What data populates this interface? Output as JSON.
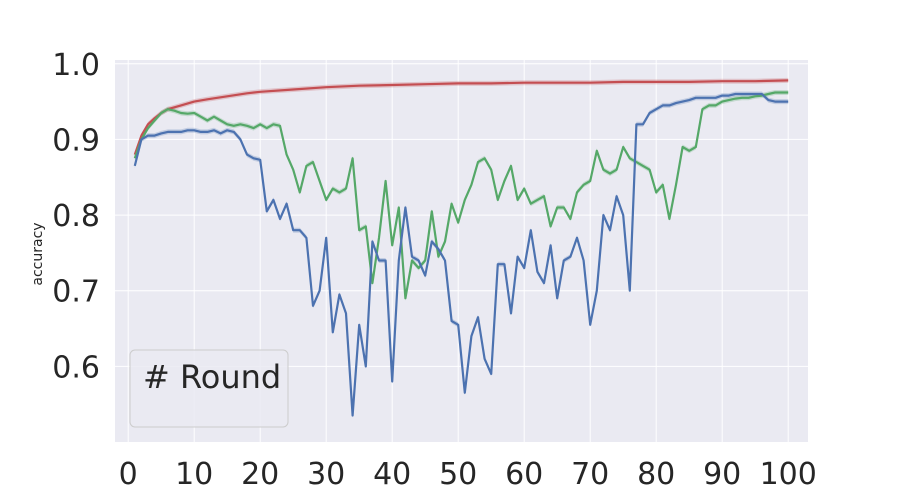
{
  "chart_data": {
    "type": "line",
    "title": "",
    "xlabel": "",
    "ylabel": "accuracy",
    "xlim": [
      -2,
      103
    ],
    "ylim": [
      0.5,
      1.005
    ],
    "xticks": [
      0,
      10,
      20,
      30,
      40,
      50,
      60,
      70,
      80,
      90,
      100
    ],
    "yticks": [
      0.6,
      0.7,
      0.8,
      0.9,
      1.0
    ],
    "ytick_labels": [
      "0.6",
      "0.7",
      "0.8",
      "0.9",
      "1.0"
    ],
    "grid": true,
    "legend": {
      "placement": "lower-left",
      "title": "# Round",
      "entries": []
    },
    "colors": {
      "background": "#eaeaf2",
      "grid": "#ffffff",
      "blue": "#4c72b0",
      "green": "#55a868",
      "red": "#c44e52"
    },
    "series": [
      {
        "color": "#c44e52",
        "x": [
          1,
          2,
          3,
          4,
          5,
          6,
          8,
          10,
          12,
          15,
          18,
          20,
          25,
          30,
          35,
          40,
          45,
          50,
          55,
          60,
          65,
          70,
          75,
          80,
          85,
          90,
          95,
          100
        ],
        "y": [
          0.88,
          0.905,
          0.92,
          0.928,
          0.935,
          0.94,
          0.945,
          0.95,
          0.953,
          0.957,
          0.961,
          0.963,
          0.966,
          0.969,
          0.971,
          0.972,
          0.973,
          0.974,
          0.974,
          0.975,
          0.975,
          0.975,
          0.976,
          0.976,
          0.976,
          0.977,
          0.977,
          0.978
        ]
      },
      {
        "color": "#55a868",
        "x": [
          1,
          2,
          3,
          4,
          5,
          6,
          7,
          8,
          9,
          10,
          11,
          12,
          13,
          14,
          15,
          16,
          17,
          18,
          19,
          20,
          21,
          22,
          23,
          24,
          25,
          26,
          27,
          28,
          29,
          30,
          31,
          32,
          33,
          34,
          35,
          36,
          37,
          38,
          39,
          40,
          41,
          42,
          43,
          44,
          45,
          46,
          47,
          48,
          49,
          50,
          51,
          52,
          53,
          54,
          55,
          56,
          57,
          58,
          59,
          60,
          61,
          62,
          63,
          64,
          65,
          66,
          67,
          68,
          69,
          70,
          71,
          72,
          73,
          74,
          75,
          76,
          77,
          78,
          79,
          80,
          81,
          82,
          83,
          84,
          85,
          86,
          87,
          88,
          89,
          90,
          91,
          92,
          93,
          94,
          95,
          96,
          97,
          98,
          99,
          100
        ],
        "y": [
          0.875,
          0.9,
          0.915,
          0.925,
          0.935,
          0.94,
          0.938,
          0.935,
          0.934,
          0.935,
          0.93,
          0.925,
          0.93,
          0.925,
          0.92,
          0.918,
          0.92,
          0.918,
          0.915,
          0.92,
          0.915,
          0.92,
          0.918,
          0.88,
          0.86,
          0.83,
          0.865,
          0.87,
          0.845,
          0.82,
          0.835,
          0.83,
          0.835,
          0.875,
          0.78,
          0.785,
          0.71,
          0.77,
          0.845,
          0.76,
          0.81,
          0.69,
          0.74,
          0.73,
          0.74,
          0.805,
          0.745,
          0.765,
          0.815,
          0.79,
          0.82,
          0.84,
          0.87,
          0.875,
          0.86,
          0.82,
          0.845,
          0.865,
          0.82,
          0.835,
          0.815,
          0.82,
          0.825,
          0.785,
          0.81,
          0.81,
          0.795,
          0.83,
          0.84,
          0.845,
          0.885,
          0.86,
          0.855,
          0.86,
          0.89,
          0.875,
          0.87,
          0.865,
          0.86,
          0.83,
          0.84,
          0.795,
          0.84,
          0.89,
          0.885,
          0.89,
          0.94,
          0.945,
          0.945,
          0.95,
          0.952,
          0.954,
          0.955,
          0.955,
          0.957,
          0.958,
          0.96,
          0.962,
          0.962,
          0.962
        ]
      },
      {
        "color": "#4c72b0",
        "x": [
          1,
          2,
          3,
          4,
          5,
          6,
          7,
          8,
          9,
          10,
          11,
          12,
          13,
          14,
          15,
          16,
          17,
          18,
          19,
          20,
          21,
          22,
          23,
          24,
          25,
          26,
          27,
          28,
          29,
          30,
          31,
          32,
          33,
          34,
          35,
          36,
          37,
          38,
          39,
          40,
          41,
          42,
          43,
          44,
          45,
          46,
          47,
          48,
          49,
          50,
          51,
          52,
          53,
          54,
          55,
          56,
          57,
          58,
          59,
          60,
          61,
          62,
          63,
          64,
          65,
          66,
          67,
          68,
          69,
          70,
          71,
          72,
          73,
          74,
          75,
          76,
          77,
          78,
          79,
          80,
          81,
          82,
          83,
          84,
          85,
          86,
          87,
          88,
          89,
          90,
          91,
          92,
          93,
          94,
          95,
          96,
          97,
          98,
          99,
          100
        ],
        "y": [
          0.865,
          0.9,
          0.905,
          0.905,
          0.908,
          0.91,
          0.91,
          0.91,
          0.912,
          0.912,
          0.91,
          0.91,
          0.912,
          0.908,
          0.912,
          0.91,
          0.9,
          0.88,
          0.875,
          0.873,
          0.805,
          0.82,
          0.795,
          0.815,
          0.78,
          0.78,
          0.77,
          0.68,
          0.7,
          0.77,
          0.645,
          0.695,
          0.67,
          0.535,
          0.655,
          0.6,
          0.765,
          0.74,
          0.74,
          0.58,
          0.74,
          0.81,
          0.745,
          0.74,
          0.72,
          0.765,
          0.755,
          0.74,
          0.66,
          0.655,
          0.565,
          0.64,
          0.665,
          0.61,
          0.59,
          0.735,
          0.735,
          0.67,
          0.745,
          0.73,
          0.78,
          0.725,
          0.71,
          0.76,
          0.69,
          0.74,
          0.745,
          0.77,
          0.74,
          0.655,
          0.7,
          0.8,
          0.78,
          0.825,
          0.8,
          0.7,
          0.92,
          0.92,
          0.935,
          0.94,
          0.945,
          0.945,
          0.948,
          0.95,
          0.952,
          0.955,
          0.955,
          0.955,
          0.955,
          0.958,
          0.958,
          0.96,
          0.96,
          0.96,
          0.96,
          0.96,
          0.952,
          0.95,
          0.95,
          0.95
        ]
      }
    ]
  }
}
